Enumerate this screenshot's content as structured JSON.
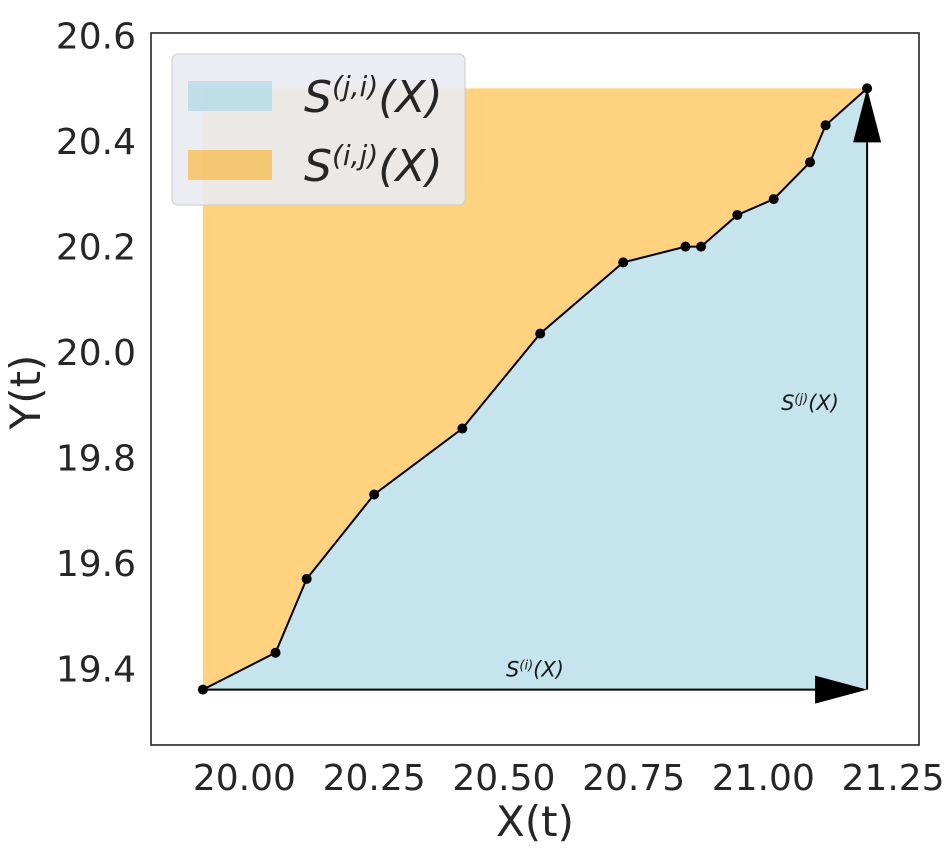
{
  "chart_data": {
    "type": "area",
    "xlabel": "X(t)",
    "ylabel": "Y(t)",
    "xlim": [
      19.82,
      21.3
    ],
    "ylim": [
      19.255,
      20.605
    ],
    "xticks": [
      "20.00",
      "20.25",
      "20.50",
      "20.75",
      "21.00",
      "21.25"
    ],
    "yticks": [
      "19.4",
      "19.6",
      "19.8",
      "20.0",
      "20.2",
      "20.4",
      "20.6"
    ],
    "grid": false,
    "legend_position": "top-left",
    "path": {
      "x": [
        19.92,
        20.06,
        20.12,
        20.25,
        20.42,
        20.57,
        20.73,
        20.85,
        20.88,
        20.95,
        21.02,
        21.09,
        21.12,
        21.2
      ],
      "y": [
        19.36,
        19.43,
        19.57,
        19.73,
        19.855,
        20.035,
        20.17,
        20.2,
        20.2,
        20.26,
        20.29,
        20.36,
        20.43,
        20.5
      ]
    },
    "series": [
      {
        "name": "S^{(j,i)}(X)",
        "label_base": "S",
        "label_sup": "(j,i)",
        "label_tail": "(X)",
        "color": "#add8e6"
      },
      {
        "name": "S^{(i,j)}(X)",
        "label_base": "S",
        "label_sup": "(i,j)",
        "label_tail": "(X)",
        "color": "#ffa500"
      }
    ],
    "annotations": [
      {
        "label_base": "S",
        "label_sup": "(i)",
        "label_tail": "(X)",
        "x": 20.56,
        "y": 19.385
      },
      {
        "label_base": "S",
        "label_sup": "(j)",
        "label_tail": "(X)",
        "x": 21.09,
        "y": 19.89
      }
    ]
  }
}
